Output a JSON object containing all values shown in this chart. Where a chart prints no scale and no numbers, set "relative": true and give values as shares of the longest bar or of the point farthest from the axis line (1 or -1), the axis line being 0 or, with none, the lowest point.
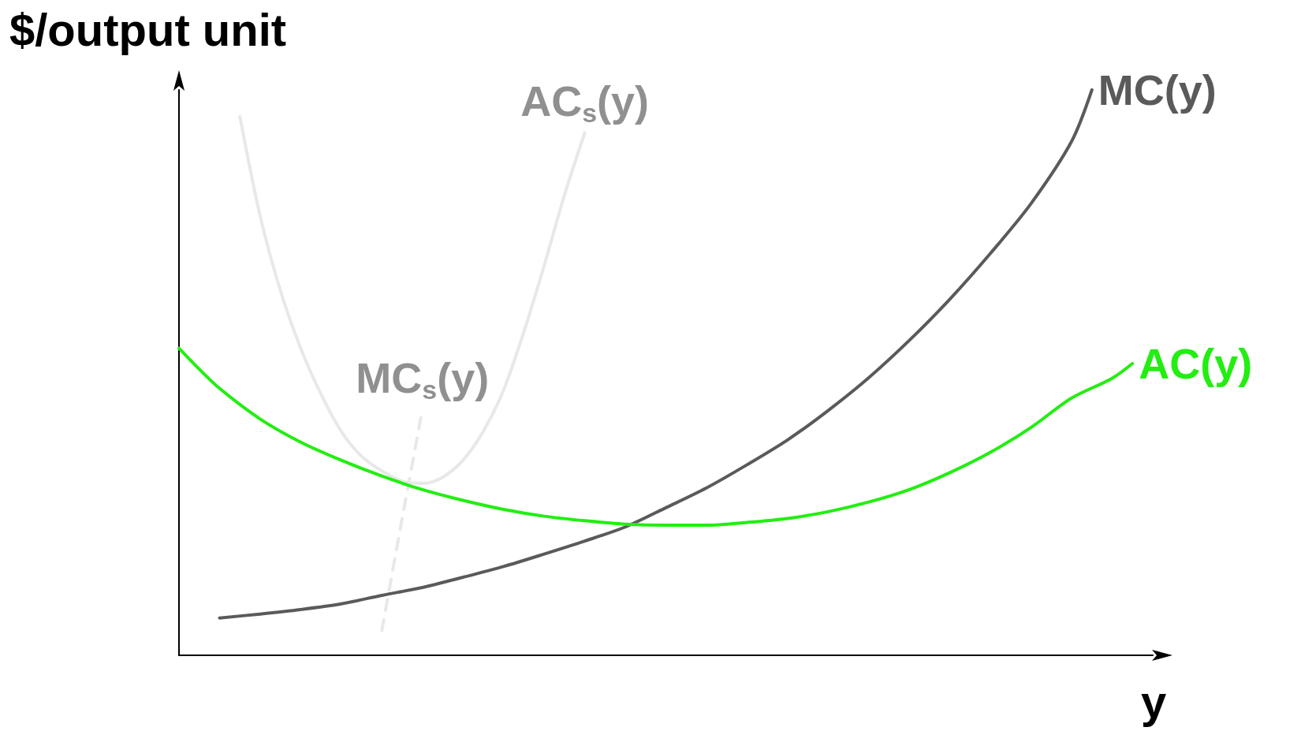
{
  "chart_data": {
    "type": "line",
    "relative": true,
    "xlabel": "y",
    "ylabel": "$/output unit",
    "categories": [
      null,
      null,
      null,
      null,
      null,
      null,
      null,
      null,
      null,
      null,
      null,
      null,
      null,
      null,
      null,
      null,
      null,
      null,
      null,
      null,
      null,
      null,
      null,
      null,
      null,
      null,
      null,
      null,
      null,
      null,
      null,
      null,
      null,
      null,
      null,
      null,
      null,
      null,
      null,
      null,
      null,
      null,
      null,
      null,
      null,
      null,
      null,
      null,
      null
    ],
    "legend": false,
    "marker": "none",
    "grid": false,
    "series": [
      {
        "name": "AC$_{s}$(y)",
        "color": "#e8e8e8",
        "values": [
          null,
          null,
          null,
          0.953,
          0.777,
          0.645,
          0.543,
          0.462,
          0.396,
          0.352,
          0.326,
          0.308,
          0.304,
          0.315,
          0.345,
          0.396,
          0.469,
          0.572,
          0.689,
          0.814,
          0.924,
          null,
          null,
          null,
          null,
          null,
          null,
          null,
          null,
          null,
          null,
          null,
          null,
          null,
          null,
          null,
          null,
          null,
          null,
          null,
          null,
          null,
          null,
          null,
          null,
          null,
          null,
          null,
          null
        ]
      },
      {
        "name": "MC$_{s}$(y)",
        "color": "#e8e8e8",
        "line_style": "dashed",
        "values": [
          null,
          null,
          null,
          null,
          null,
          null,
          null,
          null,
          null,
          null,
          0.044,
          0.242,
          0.435,
          null,
          null,
          null,
          null,
          null,
          null,
          null,
          null,
          null,
          null,
          null,
          null,
          null,
          null,
          null,
          null,
          null,
          null,
          null,
          null,
          null,
          null,
          null,
          null,
          null,
          null,
          null,
          null,
          null,
          null,
          null,
          null,
          null,
          null,
          null,
          null
        ]
      },
      {
        "name": "MC(y)",
        "color": "#5a5a5a",
        "values": [
          null,
          null,
          0.066,
          null,
          0.073,
          null,
          0.081,
          null,
          0.091,
          null,
          0.106,
          null,
          0.12,
          null,
          0.138,
          null,
          0.157,
          null,
          0.179,
          null,
          0.202,
          null,
          0.227,
          null,
          0.261,
          null,
          0.296,
          null,
          0.337,
          null,
          0.381,
          null,
          0.433,
          null,
          0.491,
          null,
          0.557,
          null,
          0.63,
          null,
          0.711,
          null,
          0.799,
          null,
          0.909,
          1.0,
          null,
          null,
          null
        ]
      },
      {
        "name": "AC(y)",
        "color": "#22ee11",
        "values": [
          0.543,
          0.506,
          0.472,
          null,
          0.418,
          null,
          0.377,
          null,
          0.345,
          null,
          0.317,
          null,
          0.293,
          null,
          0.274,
          null,
          0.258,
          null,
          0.246,
          null,
          0.238,
          null,
          0.232,
          null,
          0.23,
          null,
          0.23,
          null,
          0.235,
          null,
          0.242,
          null,
          0.254,
          null,
          0.271,
          null,
          0.293,
          null,
          0.323,
          null,
          0.359,
          null,
          0.403,
          null,
          0.455,
          null,
          0.49,
          0.516,
          null
        ]
      }
    ]
  }
}
